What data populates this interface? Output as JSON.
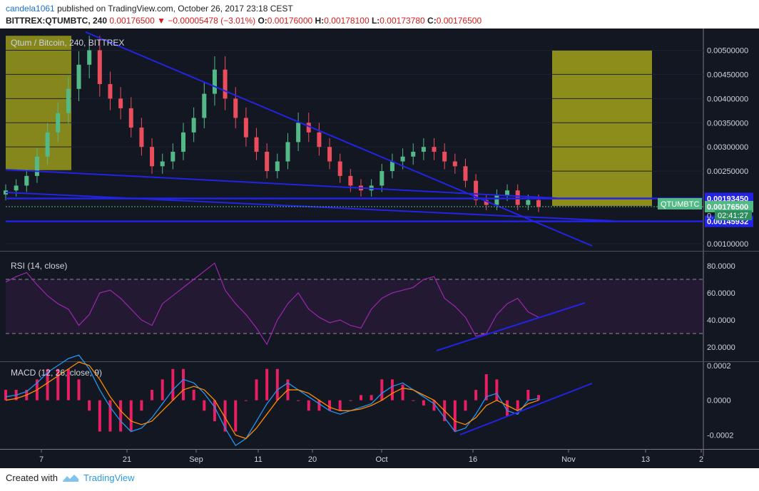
{
  "header": {
    "user": "candela1061",
    "published_text": "published on TradingView.com, October 26, 2017 23:18 CEST",
    "symbol_line": "BITTREX:QTUMBTC, 240",
    "price": "0.00176500",
    "change": "−0.00005478 (−3.01%)",
    "o_label": "O:",
    "o": "0.00176000",
    "h_label": "H:",
    "h": "0.00178100",
    "l_label": "L:",
    "l": "0.00173780",
    "c_label": "C:",
    "c": "0.00176500"
  },
  "footer": {
    "created_with": "Created with",
    "brand": "TradingView"
  },
  "colors": {
    "background": "#131722",
    "up": "#53b987",
    "down": "#eb4d5c",
    "trendline": "#2323e6",
    "rsi": "#9c27b0",
    "macd": "#2196f3",
    "signal": "#ff8c00",
    "hist": "#e91e63",
    "box": "#9a9a1a"
  },
  "chart_data": [
    {
      "type": "candlestick",
      "title": "Qtum / Bitcoin, 240, BITTREX",
      "y_ticks": [
        "0.00500000",
        "0.00450000",
        "0.00400000",
        "0.00350000",
        "0.00300000",
        "0.00250000",
        "0.00100000"
      ],
      "y_tick_values": [
        0.005,
        0.0045,
        0.004,
        0.0035,
        0.003,
        0.0025,
        0.001
      ],
      "ylim": [
        0.00085,
        0.00545
      ],
      "price_labels": [
        {
          "text": "0.00193450",
          "value": 0.0019345
        },
        {
          "text": "0.00176500",
          "value": 0.001765
        },
        {
          "text": "0.00145932",
          "value": 0.00145932
        }
      ],
      "symbol_tag": "QTUMBTC",
      "countdown": "02:41:27",
      "partial_label": "0.",
      "x_ticks": [
        "7",
        "21",
        "Sep",
        "11",
        "20",
        "Oct",
        "16",
        "Nov",
        "13",
        "2"
      ],
      "series_close": [
        0.0021,
        0.0022,
        0.0024,
        0.0028,
        0.0033,
        0.0037,
        0.0042,
        0.0047,
        0.005,
        0.0043,
        0.004,
        0.0038,
        0.0034,
        0.003,
        0.0026,
        0.0027,
        0.0029,
        0.0033,
        0.0036,
        0.0041,
        0.0046,
        0.004,
        0.0036,
        0.0032,
        0.0029,
        0.0025,
        0.0027,
        0.0031,
        0.0035,
        0.0033,
        0.003,
        0.0027,
        0.0024,
        0.0022,
        0.0021,
        0.0022,
        0.0025,
        0.0027,
        0.0028,
        0.0029,
        0.003,
        0.0029,
        0.0027,
        0.0026,
        0.0023,
        0.0019,
        0.0018,
        0.002,
        0.0021,
        0.0018,
        0.0019,
        0.00176
      ]
    },
    {
      "type": "line",
      "title": "RSI (14, close)",
      "y_ticks": [
        "80.0000",
        "60.0000",
        "40.0000",
        "20.0000"
      ],
      "y_tick_values": [
        80,
        60,
        40,
        20
      ],
      "ylim": [
        10,
        90
      ],
      "bands": [
        70,
        30
      ],
      "values": [
        68,
        72,
        75,
        66,
        58,
        52,
        48,
        36,
        44,
        60,
        62,
        56,
        48,
        40,
        36,
        52,
        58,
        64,
        70,
        76,
        82,
        62,
        52,
        44,
        34,
        22,
        40,
        52,
        60,
        48,
        42,
        38,
        40,
        36,
        34,
        48,
        56,
        60,
        62,
        64,
        70,
        72,
        56,
        50,
        42,
        28,
        30,
        44,
        52,
        56,
        46,
        42
      ]
    },
    {
      "type": "line",
      "title": "MACD (12, 26, close, 9)",
      "y_ticks": [
        "0.0002",
        "0.0000",
        "-0.0002"
      ],
      "y_tick_values": [
        0.0002,
        0.0,
        -0.0002
      ],
      "ylim": [
        -0.00028,
        0.00022
      ],
      "series": [
        {
          "values": [
            2e-05,
            3e-05,
            5e-05,
            0.0001,
            0.00016,
            0.0002,
            0.00024,
            0.00026,
            0.00018,
            6e-05,
            -4e-05,
            -0.00012,
            -0.00018,
            -0.00016,
            -0.0001,
            -2e-05,
            6e-05,
            0.00012,
            0.0001,
            4e-05,
            -4e-05,
            -0.00016,
            -0.00026,
            -0.00022,
            -0.00012,
            -2e-05,
            6e-05,
            0.0001,
            6e-05,
            2e-05,
            -2e-05,
            -6e-05,
            -8e-05,
            -6e-05,
            -4e-05,
            -2e-05,
            4e-05,
            8e-05,
            0.0001,
            6e-05,
            2e-05,
            -2e-05,
            -0.0001,
            -0.00018,
            -0.00016,
            -8e-05,
            2e-05,
            4e-05,
            -6e-05,
            -8e-05,
            0.0,
            1e-05
          ]
        },
        {
          "values": [
            0.0,
            1e-05,
            3e-05,
            6e-05,
            0.0001,
            0.00014,
            0.00018,
            0.00022,
            0.0002,
            0.00012,
            2e-05,
            -6e-05,
            -0.00012,
            -0.00014,
            -0.00012,
            -6e-05,
            0.0,
            6e-05,
            8e-05,
            6e-05,
            0.0,
            -0.0001,
            -0.0002,
            -0.00022,
            -0.00016,
            -8e-05,
            0.0,
            6e-05,
            6e-05,
            4e-05,
            0.0,
            -4e-05,
            -6e-05,
            -6e-05,
            -5e-05,
            -3e-05,
            0.0,
            4e-05,
            7e-05,
            6e-05,
            3e-05,
            0.0,
            -6e-05,
            -0.00012,
            -0.00014,
            -0.0001,
            -3e-05,
            0.0,
            -3e-05,
            -6e-05,
            -2e-05,
            0.0
          ]
        }
      ]
    }
  ]
}
